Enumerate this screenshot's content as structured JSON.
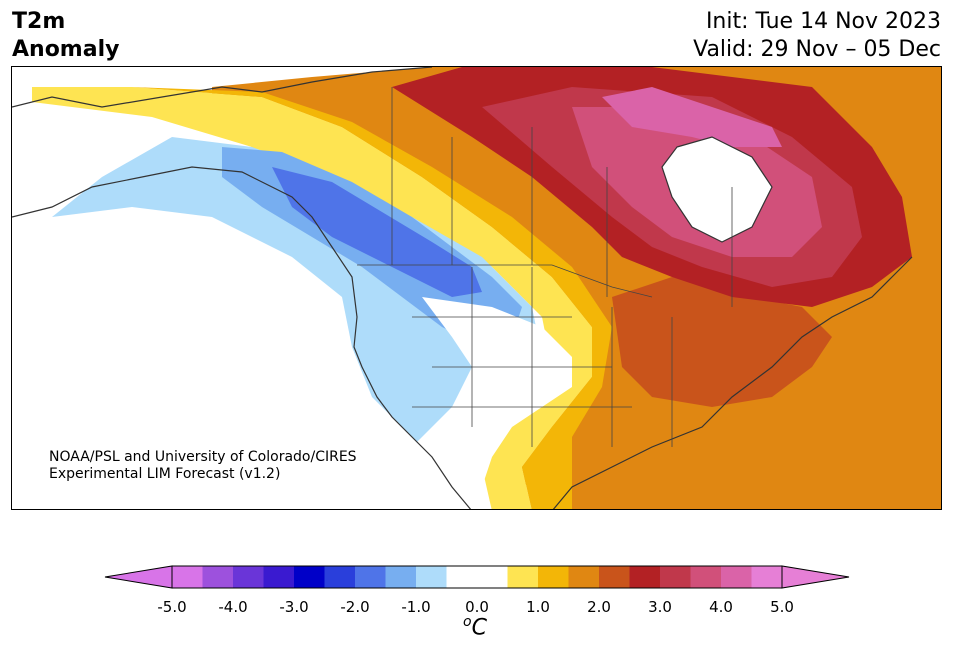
{
  "title": {
    "left_line1": "T2m",
    "left_line2": "Anomaly",
    "right_line1": "Init: Tue 14 Nov 2023",
    "right_line2": "Valid: 29 Nov – 05 Dec"
  },
  "credit": {
    "line1": "NOAA/PSL and University of Colorado/CIRES",
    "line2": "Experimental LIM Forecast (v1.2)"
  },
  "colorbar": {
    "unit_base": "C",
    "unit_sup": "o",
    "tick_labels": [
      "-5.0",
      "-4.0",
      "-3.0",
      "-2.0",
      "-1.0",
      "0.0",
      "1.0",
      "2.0",
      "3.0",
      "4.0",
      "5.0"
    ],
    "colors": [
      "#d874e8",
      "#9d51dd",
      "#6a35d8",
      "#3a1ad0",
      "#0000c8",
      "#2a3fdb",
      "#4f74e8",
      "#77aef0",
      "#aedcfa",
      "#ffffff",
      "#ffffff",
      "#fee452",
      "#f3b607",
      "#e08712",
      "#c9541b",
      "#b32124",
      "#c0384b",
      "#d1507a",
      "#da63a8",
      "#e67fd6"
    ],
    "under_color": "#d874e8",
    "over_color": "#e67fd6"
  }
}
